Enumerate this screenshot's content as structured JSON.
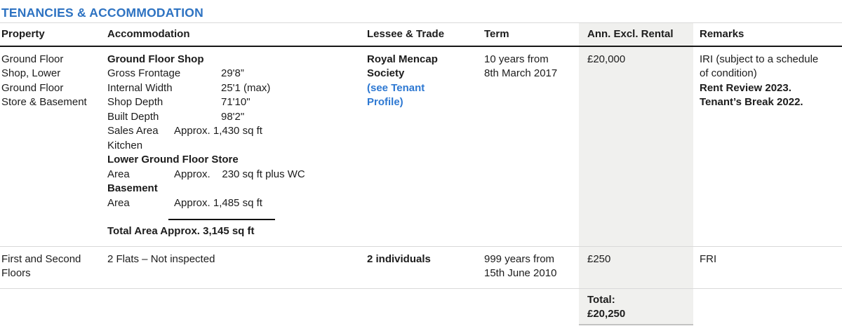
{
  "title": "TENANCIES & ACCOMMODATION",
  "colors": {
    "title_blue": "#2e73c2",
    "link_blue": "#2d78d2",
    "rental_band_gray": "#f0f0ee",
    "text": "#1c1c1c"
  },
  "table": {
    "headers": {
      "property": "Property",
      "accommodation": "Accommodation",
      "lessee": "Lessee & Trade",
      "term": "Term",
      "rental": "Ann. Excl. Rental",
      "remarks": "Remarks"
    },
    "row1": {
      "property": [
        "Ground Floor",
        "Shop, Lower",
        "Ground Floor",
        "Store & Basement"
      ],
      "accommodation": {
        "section1_heading": "Ground Floor Shop",
        "dims": [
          {
            "label": "Gross Frontage",
            "value": "29'8”"
          },
          {
            "label": "Internal Width",
            "value": "25'1 (max)"
          },
          {
            "label": "Shop Depth",
            "value": "71'10\""
          },
          {
            "label": "Built Depth",
            "value": "98'2\""
          }
        ],
        "sales_area": {
          "label": "Sales Area",
          "value": "Approx. 1,430 sq ft"
        },
        "kitchen": "Kitchen",
        "section2_heading": "Lower Ground Floor Store",
        "store_area": {
          "label": "Area",
          "value": "Approx.    230 sq ft plus WC"
        },
        "section3_heading": "Basement",
        "basement_area": {
          "label": "Area",
          "value": "Approx. 1,485 sq ft"
        },
        "total_area": "Total Area Approx. 3,145 sq ft"
      },
      "lessee_name": [
        "Royal Mencap",
        "Society"
      ],
      "lessee_link": [
        "(see Tenant",
        "Profile)"
      ],
      "term": [
        "10 years from",
        "8th March 2017"
      ],
      "rental": "£20,000",
      "remarks_normal": [
        "IRI (subject to a schedule",
        "of condition)"
      ],
      "remarks_bold": [
        "Rent Review 2023.",
        "Tenant’s Break 2022."
      ]
    },
    "row2": {
      "property": [
        "First and Second",
        "Floors"
      ],
      "accommodation": "2 Flats – Not inspected",
      "lessee": "2 individuals",
      "term": [
        "999 years from",
        "15th June 2010"
      ],
      "rental": "£250",
      "remarks": "FRI"
    },
    "total_row": {
      "label": "Total:",
      "value": "£20,250"
    }
  }
}
